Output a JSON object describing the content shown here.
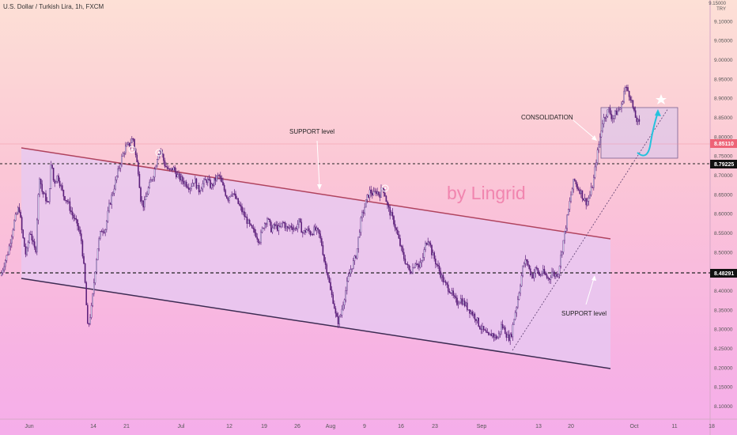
{
  "header": {
    "symbol_line": "U.S. Dollar / Turkish Lira, 1h, FXCM",
    "currency_top": "9.15000",
    "currency_code": "TRY"
  },
  "watermark": "by Lingrid",
  "colors": {
    "candle": "#5b1f7a",
    "channel_upper": "#b0435e",
    "channel_lower": "#3c2b52",
    "channel_fill": "#e6c9f3",
    "box_fill": "#d9c6ec",
    "arrow": "#25c2dd",
    "price_tag": "#ee6377"
  },
  "annotations": {
    "support_top": "SUPPORT level",
    "support_bottom": "SUPPORT level",
    "consolidation": "CONSOLIDATION"
  },
  "chart_data": {
    "type": "candlestick",
    "title": "U.S. Dollar / Turkish Lira, 1h, FXCM",
    "y_unit": "TRY",
    "ylim": [
      8.075,
      9.15
    ],
    "y_ticks": [
      "9.15000",
      "9.10000",
      "9.05000",
      "9.00000",
      "8.95000",
      "8.90000",
      "8.85000",
      "8.80000",
      "8.75000",
      "8.70000",
      "8.65000",
      "8.60000",
      "8.55000",
      "8.50000",
      "8.45000",
      "8.40000",
      "8.35000",
      "8.30000",
      "8.25000",
      "8.20000",
      "8.15000",
      "8.10000"
    ],
    "x_tick_labels": [
      "Jun",
      "14",
      "21",
      "Jul",
      "12",
      "19",
      "26",
      "Aug",
      "9",
      "16",
      "23",
      "Sep",
      "13",
      "20",
      "Oct",
      "11",
      "18"
    ],
    "current_price": "8.85110",
    "horizontal_levels": [
      {
        "price": 8.79225,
        "label": "8.79225"
      },
      {
        "price": 8.48291,
        "label": "8.48291"
      }
    ],
    "price_path": [
      [
        1,
        8.44
      ],
      [
        5,
        8.47
      ],
      [
        10,
        8.5
      ],
      [
        18,
        8.58
      ],
      [
        24,
        8.62
      ],
      [
        28,
        8.55
      ],
      [
        33,
        8.49
      ],
      [
        38,
        8.56
      ],
      [
        42,
        8.52
      ],
      [
        45,
        8.5
      ],
      [
        47,
        8.6
      ],
      [
        50,
        8.7
      ],
      [
        53,
        8.66
      ],
      [
        58,
        8.64
      ],
      [
        61,
        8.62
      ],
      [
        65,
        8.74
      ],
      [
        68,
        8.68
      ],
      [
        73,
        8.7
      ],
      [
        80,
        8.65
      ],
      [
        86,
        8.63
      ],
      [
        91,
        8.6
      ],
      [
        98,
        8.57
      ],
      [
        103,
        8.53
      ],
      [
        107,
        8.44
      ],
      [
        111,
        8.3
      ],
      [
        116,
        8.36
      ],
      [
        120,
        8.45
      ],
      [
        124,
        8.52
      ],
      [
        128,
        8.56
      ],
      [
        133,
        8.56
      ],
      [
        138,
        8.62
      ],
      [
        143,
        8.66
      ],
      [
        148,
        8.7
      ],
      [
        153,
        8.74
      ],
      [
        158,
        8.77
      ],
      [
        163,
        8.78
      ],
      [
        166,
        8.79
      ],
      [
        168,
        8.8
      ],
      [
        171,
        8.76
      ],
      [
        175,
        8.71
      ],
      [
        178,
        8.64
      ],
      [
        182,
        8.62
      ],
      [
        185,
        8.65
      ],
      [
        190,
        8.68
      ],
      [
        195,
        8.71
      ],
      [
        200,
        8.76
      ],
      [
        203,
        8.77
      ],
      [
        208,
        8.73
      ],
      [
        214,
        8.71
      ],
      [
        219,
        8.72
      ],
      [
        224,
        8.7
      ],
      [
        229,
        8.69
      ],
      [
        235,
        8.68
      ],
      [
        240,
        8.67
      ],
      [
        246,
        8.69
      ],
      [
        251,
        8.66
      ],
      [
        257,
        8.68
      ],
      [
        262,
        8.69
      ],
      [
        267,
        8.67
      ],
      [
        272,
        8.69
      ],
      [
        277,
        8.7
      ],
      [
        282,
        8.67
      ],
      [
        288,
        8.64
      ],
      [
        293,
        8.66
      ],
      [
        298,
        8.64
      ],
      [
        303,
        8.62
      ],
      [
        308,
        8.6
      ],
      [
        313,
        8.58
      ],
      [
        318,
        8.56
      ],
      [
        323,
        8.55
      ],
      [
        328,
        8.53
      ],
      [
        333,
        8.57
      ],
      [
        338,
        8.59
      ],
      [
        343,
        8.56
      ],
      [
        348,
        8.57
      ],
      [
        353,
        8.56
      ],
      [
        358,
        8.58
      ],
      [
        363,
        8.56
      ],
      [
        368,
        8.57
      ],
      [
        373,
        8.56
      ],
      [
        378,
        8.58
      ],
      [
        383,
        8.55
      ],
      [
        388,
        8.56
      ],
      [
        393,
        8.55
      ],
      [
        398,
        8.56
      ],
      [
        403,
        8.55
      ],
      [
        407,
        8.52
      ],
      [
        410,
        8.48
      ],
      [
        414,
        8.45
      ],
      [
        418,
        8.4
      ],
      [
        422,
        8.37
      ],
      [
        425,
        8.33
      ],
      [
        428,
        8.32
      ],
      [
        431,
        8.34
      ],
      [
        434,
        8.37
      ],
      [
        437,
        8.4
      ],
      [
        440,
        8.43
      ],
      [
        444,
        8.46
      ],
      [
        448,
        8.48
      ],
      [
        451,
        8.5
      ],
      [
        454,
        8.55
      ],
      [
        457,
        8.59
      ],
      [
        460,
        8.61
      ],
      [
        464,
        8.64
      ],
      [
        468,
        8.66
      ],
      [
        472,
        8.65
      ],
      [
        476,
        8.66
      ],
      [
        480,
        8.65
      ],
      [
        484,
        8.67
      ],
      [
        487,
        8.65
      ],
      [
        490,
        8.62
      ],
      [
        494,
        8.6
      ],
      [
        498,
        8.58
      ],
      [
        502,
        8.55
      ],
      [
        506,
        8.52
      ],
      [
        510,
        8.49
      ],
      [
        514,
        8.47
      ],
      [
        518,
        8.45
      ],
      [
        522,
        8.46
      ],
      [
        526,
        8.48
      ],
      [
        530,
        8.46
      ],
      [
        534,
        8.48
      ],
      [
        538,
        8.52
      ],
      [
        542,
        8.54
      ],
      [
        546,
        8.5
      ],
      [
        550,
        8.48
      ],
      [
        554,
        8.46
      ],
      [
        558,
        8.44
      ],
      [
        562,
        8.42
      ],
      [
        566,
        8.41
      ],
      [
        570,
        8.4
      ],
      [
        574,
        8.38
      ],
      [
        578,
        8.37
      ],
      [
        582,
        8.38
      ],
      [
        586,
        8.37
      ],
      [
        590,
        8.36
      ],
      [
        594,
        8.35
      ],
      [
        598,
        8.34
      ],
      [
        602,
        8.33
      ],
      [
        606,
        8.31
      ],
      [
        610,
        8.3
      ],
      [
        614,
        8.29
      ],
      [
        618,
        8.28
      ],
      [
        622,
        8.29
      ],
      [
        626,
        8.28
      ],
      [
        630,
        8.28
      ],
      [
        634,
        8.31
      ],
      [
        638,
        8.3
      ],
      [
        642,
        8.28
      ],
      [
        646,
        8.28
      ],
      [
        650,
        8.33
      ],
      [
        654,
        8.37
      ],
      [
        658,
        8.42
      ],
      [
        662,
        8.47
      ],
      [
        666,
        8.48
      ],
      [
        670,
        8.45
      ],
      [
        674,
        8.44
      ],
      [
        678,
        8.46
      ],
      [
        682,
        8.44
      ],
      [
        686,
        8.45
      ],
      [
        690,
        8.44
      ],
      [
        694,
        8.43
      ],
      [
        698,
        8.45
      ],
      [
        702,
        8.44
      ],
      [
        706,
        8.45
      ],
      [
        710,
        8.5
      ],
      [
        714,
        8.55
      ],
      [
        718,
        8.6
      ],
      [
        722,
        8.65
      ],
      [
        726,
        8.69
      ],
      [
        730,
        8.67
      ],
      [
        734,
        8.66
      ],
      [
        738,
        8.64
      ],
      [
        742,
        8.63
      ],
      [
        746,
        8.65
      ],
      [
        750,
        8.68
      ],
      [
        754,
        8.74
      ],
      [
        758,
        8.79
      ],
      [
        762,
        8.84
      ],
      [
        766,
        8.86
      ],
      [
        770,
        8.87
      ],
      [
        774,
        8.85
      ],
      [
        778,
        8.86
      ],
      [
        782,
        8.87
      ],
      [
        786,
        8.88
      ],
      [
        790,
        8.93
      ],
      [
        794,
        8.92
      ],
      [
        798,
        8.9
      ],
      [
        802,
        8.86
      ],
      [
        806,
        8.84
      ],
      [
        810,
        8.83
      ]
    ]
  }
}
